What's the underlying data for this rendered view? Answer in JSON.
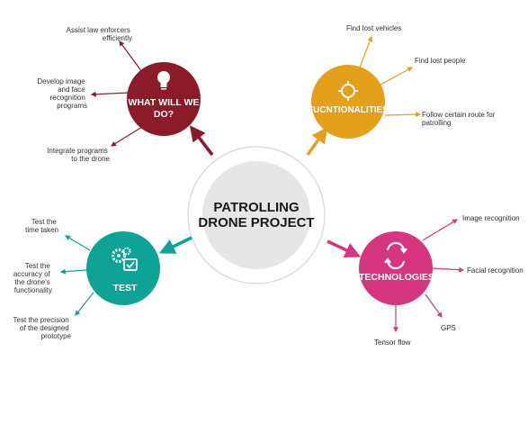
{
  "center": {
    "title_line1": "PATROLLING",
    "title_line2": "DRONE PROJECT",
    "fill_color": "#e6e6e6"
  },
  "nodes": {
    "what_will_we_do": {
      "title_line1": "WHAT WILL WE",
      "title_line2": "DO?",
      "icon": "lightbulb-icon",
      "color": "#8b1a2b",
      "items": [
        {
          "lines": [
            "Assist law enforcers",
            "efficiently"
          ]
        },
        {
          "lines": [
            "Develop image",
            "and face",
            "recognition",
            "programs"
          ]
        },
        {
          "lines": [
            "Integrate programs",
            "to the drone"
          ]
        }
      ]
    },
    "functionalities": {
      "title": "FUCNTIONALITIES",
      "icon": "crosshair-icon",
      "color": "#e5a01b",
      "items": [
        {
          "lines": [
            "Find lost vehicles"
          ]
        },
        {
          "lines": [
            "Find lost people"
          ]
        },
        {
          "lines": [
            "Follow certain route for",
            "patrolling"
          ]
        }
      ]
    },
    "test": {
      "title": "TEST",
      "icon": "gears-checklist-icon",
      "color": "#0fa396",
      "items": [
        {
          "lines": [
            "Test the",
            "time  taken"
          ]
        },
        {
          "lines": [
            "Test the",
            "accuracy  of",
            "the  drone's",
            "functionality"
          ]
        },
        {
          "lines": [
            "Test the precision",
            "of the designed",
            "prototype"
          ]
        }
      ]
    },
    "technologies": {
      "title": "TECHNOLOGIES",
      "icon": "cycle-arrows-icon",
      "color": "#d6357f",
      "items": [
        {
          "lines": [
            "Image recognition"
          ]
        },
        {
          "lines": [
            "Facial recognition"
          ]
        },
        {
          "lines": [
            "GPS"
          ]
        },
        {
          "lines": [
            "Tensor flow"
          ]
        }
      ]
    }
  }
}
